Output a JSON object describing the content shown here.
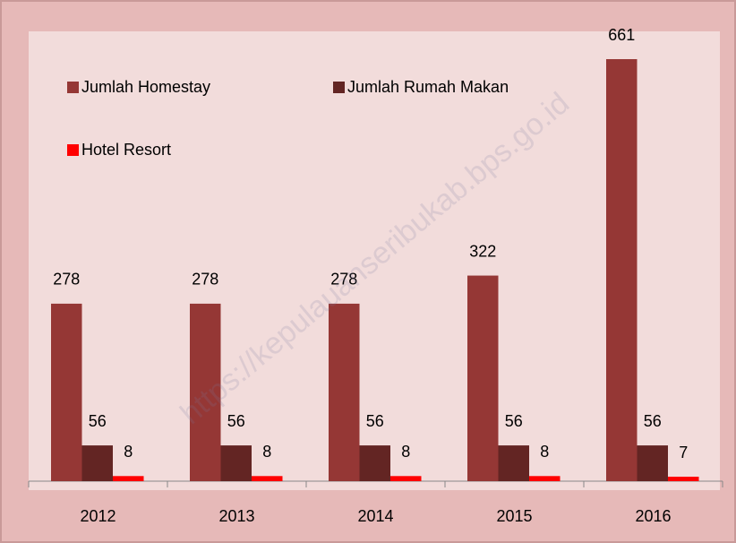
{
  "chart_data": {
    "type": "bar",
    "categories": [
      "2012",
      "2013",
      "2014",
      "2015",
      "2016"
    ],
    "series": [
      {
        "name": "Jumlah Homestay",
        "color": "#953735",
        "values": [
          278,
          278,
          278,
          322,
          661
        ]
      },
      {
        "name": "Jumlah Rumah Makan",
        "color": "#632523",
        "values": [
          56,
          56,
          56,
          56,
          56
        ]
      },
      {
        "name": "Hotel Resort",
        "color": "#ff0000",
        "values": [
          8,
          8,
          8,
          8,
          7
        ]
      }
    ],
    "legend": "top-left",
    "watermark": "https://kepulauanseribukab.bps.go.id"
  }
}
